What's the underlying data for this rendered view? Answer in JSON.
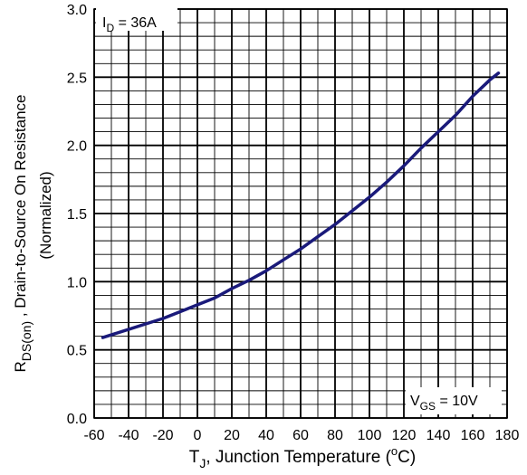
{
  "chart_data": {
    "type": "line",
    "x_ticks": [
      "-60",
      "-40",
      "-20",
      "0",
      "20",
      "40",
      "60",
      "80",
      "100",
      "120",
      "140",
      "160",
      "180"
    ],
    "y_ticks": [
      "0.0",
      "0.5",
      "1.0",
      "1.5",
      "2.0",
      "2.5",
      "3.0"
    ],
    "xlim": [
      -60,
      180
    ],
    "ylim": [
      0,
      3
    ],
    "grid": true,
    "xlabel": {
      "main": "T",
      "sub": "J",
      "rest": ", Junction Temperature (",
      "sup": "o",
      "end": "C)"
    },
    "ylabel": {
      "line1_main": "R",
      "line1_sub": "DS(on)",
      "line1_rest": " , Drain-to-Source On Resistance",
      "line2": "(Normalized)"
    },
    "annotations": {
      "id": {
        "main": "I",
        "sub": "D",
        "rest": " = 36A"
      },
      "vgs": {
        "main": "V",
        "sub": "GS",
        "rest": " = 10V"
      }
    },
    "series": [
      {
        "color": "#1a1a7a",
        "points": [
          [
            -55,
            0.59
          ],
          [
            -50,
            0.61
          ],
          [
            -40,
            0.65
          ],
          [
            -30,
            0.69
          ],
          [
            -20,
            0.73
          ],
          [
            -10,
            0.78
          ],
          [
            0,
            0.83
          ],
          [
            10,
            0.88
          ],
          [
            20,
            0.95
          ],
          [
            30,
            1.01
          ],
          [
            40,
            1.08
          ],
          [
            50,
            1.16
          ],
          [
            60,
            1.24
          ],
          [
            70,
            1.33
          ],
          [
            80,
            1.42
          ],
          [
            90,
            1.52
          ],
          [
            100,
            1.62
          ],
          [
            110,
            1.73
          ],
          [
            120,
            1.85
          ],
          [
            130,
            1.98
          ],
          [
            140,
            2.1
          ],
          [
            150,
            2.22
          ],
          [
            160,
            2.36
          ],
          [
            170,
            2.48
          ],
          [
            175,
            2.53
          ]
        ]
      }
    ]
  }
}
